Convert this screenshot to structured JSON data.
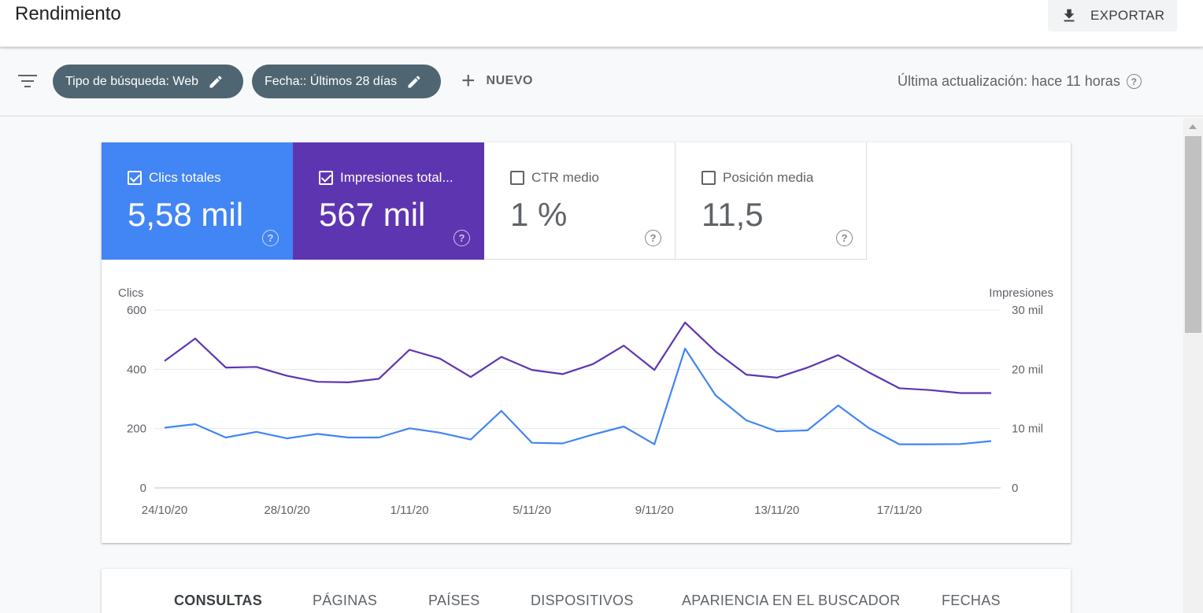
{
  "header": {
    "title": "Rendimiento",
    "export_label": "EXPORTAR"
  },
  "filters": {
    "chips": [
      "Tipo de búsqueda: Web",
      "Fecha:: Últimos 28 días"
    ],
    "new_label": "NUEVO",
    "last_update": "Última actualización: hace 11 horas"
  },
  "metrics": [
    {
      "label": "Clics totales",
      "value": "5,58 mil",
      "checked": true,
      "color": "#4285f4"
    },
    {
      "label": "Impresiones total...",
      "value": "567 mil",
      "checked": true,
      "color": "#5e35b1"
    },
    {
      "label": "CTR medio",
      "value": "1 %",
      "checked": false
    },
    {
      "label": "Posición media",
      "value": "11,5",
      "checked": false
    }
  ],
  "chart_data": {
    "type": "line",
    "y_left_label": "Clics",
    "y_right_label": "Impresiones",
    "y_left_ticks": [
      "600",
      "400",
      "200",
      "0"
    ],
    "y_right_ticks": [
      "30 mil",
      "20 mil",
      "10 mil",
      "0"
    ],
    "y_left_range": [
      0,
      600
    ],
    "y_right_range": [
      0,
      30000
    ],
    "x_ticks": [
      "24/10/20",
      "28/10/20",
      "1/11/20",
      "5/11/20",
      "9/11/20",
      "13/11/20",
      "17/11/20"
    ],
    "x": [
      "24/10/20",
      "25/10/20",
      "26/10/20",
      "27/10/20",
      "28/10/20",
      "29/10/20",
      "30/10/20",
      "31/10/20",
      "1/11/20",
      "2/11/20",
      "3/11/20",
      "4/11/20",
      "5/11/20",
      "6/11/20",
      "7/11/20",
      "8/11/20",
      "9/11/20",
      "10/11/20",
      "11/11/20",
      "12/11/20",
      "13/11/20",
      "14/11/20",
      "15/11/20",
      "16/11/20",
      "17/11/20",
      "18/11/20",
      "19/11/20",
      "20/11/20"
    ],
    "series": [
      {
        "color": "#4285f4",
        "axis": "left",
        "values": [
          203,
          215,
          170,
          189,
          167,
          182,
          170,
          170,
          201,
          186,
          163,
          260,
          152,
          150,
          180,
          207,
          147,
          470,
          312,
          228,
          191,
          194,
          278,
          202,
          147,
          147,
          148,
          158
        ]
      },
      {
        "color": "#5e35b1",
        "axis": "right",
        "values": [
          21400,
          25200,
          20300,
          20400,
          18900,
          17900,
          17800,
          18400,
          23300,
          21800,
          18700,
          22100,
          19900,
          19200,
          20900,
          24000,
          19900,
          27900,
          23000,
          19100,
          18600,
          20300,
          22400,
          19500,
          16800,
          16500,
          16000,
          16000
        ]
      }
    ],
    "grid": true
  },
  "tabs": [
    "CONSULTAS",
    "PÁGINAS",
    "PAÍSES",
    "DISPOSITIVOS",
    "APARIENCIA EN EL BUSCADOR",
    "FECHAS"
  ]
}
